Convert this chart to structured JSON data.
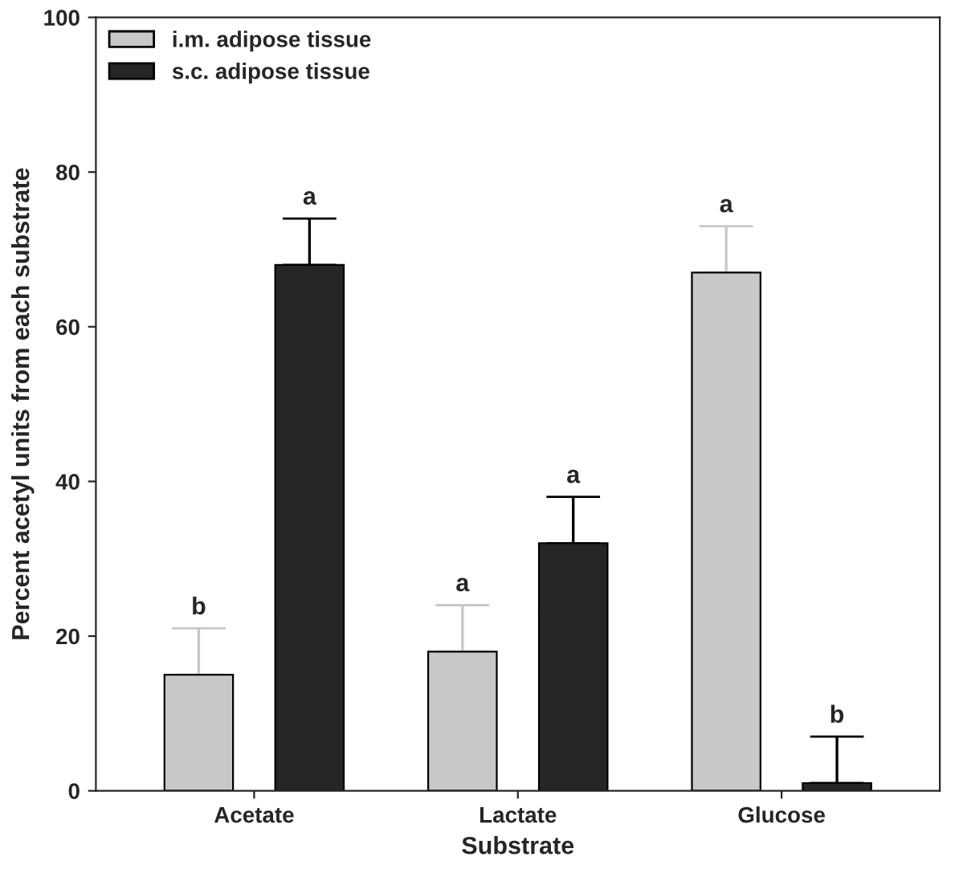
{
  "chart_data": {
    "type": "bar",
    "xlabel": "Substrate",
    "ylabel": "Percent acetyl units from each substrate",
    "categories": [
      "Acetate",
      "Lactate",
      "Glucose"
    ],
    "series": [
      {
        "name": "i.m. adipose tissue",
        "color": "#c8c8c8",
        "values": [
          15,
          18,
          67
        ],
        "errors": [
          [
            15,
            21
          ],
          [
            18,
            24
          ],
          [
            67,
            73
          ]
        ]
      },
      {
        "name": "s.c. adipose tissue",
        "color": "#262626",
        "values": [
          68,
          32,
          1
        ],
        "errors": [
          [
            68,
            74
          ],
          [
            32,
            38
          ],
          [
            1,
            7
          ]
        ]
      }
    ],
    "annotations": [
      "b",
      "a",
      "a",
      "a",
      "a",
      "b"
    ],
    "ylim": [
      0,
      100
    ],
    "yticks": [
      0,
      20,
      40,
      60,
      80,
      100
    ],
    "grid": false,
    "legend": "top left"
  }
}
